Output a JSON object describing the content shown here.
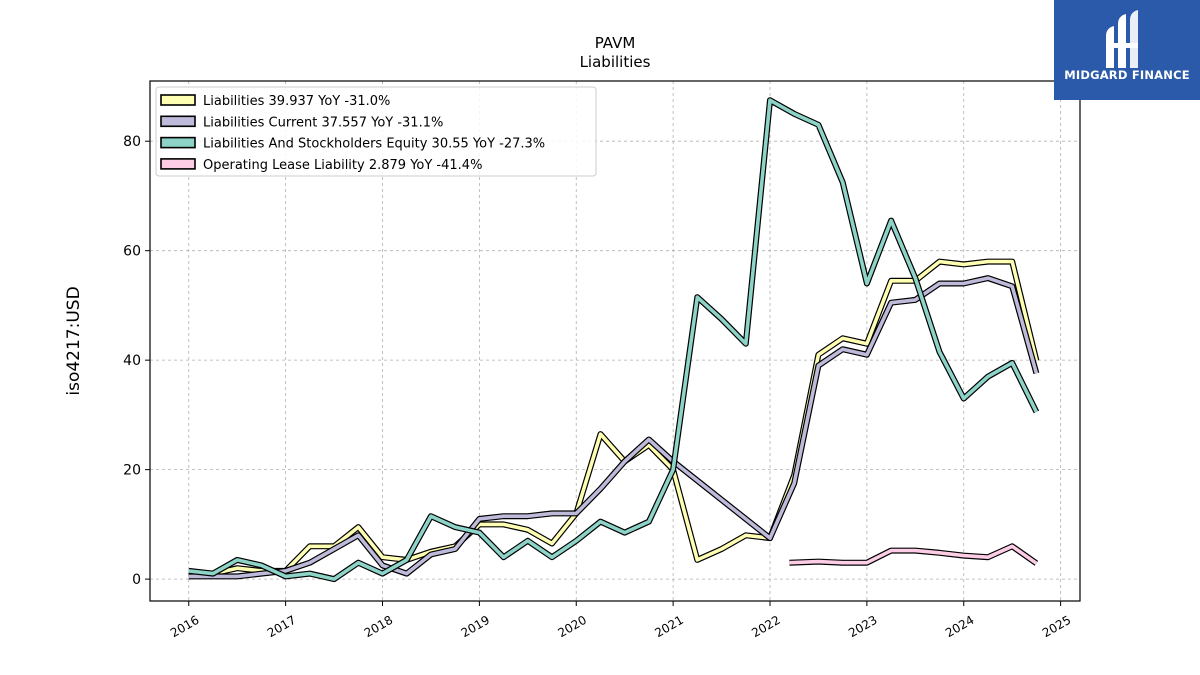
{
  "brand": {
    "name": "MIDGARD FINANCE",
    "logo_color": "#2b5aaa"
  },
  "chart_data": {
    "type": "line",
    "title": "PAVM",
    "subtitle": "Liabilities",
    "ylabel": "iso4217:USD",
    "xlabel": "",
    "xlim": [
      2015.6,
      2025.2
    ],
    "ylim": [
      -4,
      91
    ],
    "x_ticks": [
      2016,
      2017,
      2018,
      2019,
      2020,
      2021,
      2022,
      2023,
      2024,
      2025
    ],
    "y_ticks": [
      0,
      20,
      40,
      60,
      80
    ],
    "grid": true,
    "legend_position": "top-left",
    "series": [
      {
        "name": "Liabilities  39.937 YoY -31.0%",
        "color": "#ffffb3",
        "x": [
          2016.0,
          2016.25,
          2016.5,
          2016.75,
          2017.0,
          2017.25,
          2017.5,
          2017.75,
          2018.0,
          2018.25,
          2018.5,
          2018.75,
          2019.0,
          2019.25,
          2019.5,
          2019.75,
          2020.0,
          2020.25,
          2020.5,
          2020.75,
          2021.0,
          2021.25,
          2021.5,
          2021.75,
          2022.0,
          2022.25,
          2022.5,
          2022.75,
          2023.0,
          2023.25,
          2023.5,
          2023.75,
          2024.0,
          2024.25,
          2024.5,
          2024.75
        ],
        "y": [
          0.5,
          1.0,
          2.0,
          1.5,
          1.5,
          6.0,
          6.0,
          9.5,
          4.0,
          3.5,
          5.0,
          6.0,
          10.0,
          10.0,
          9.0,
          6.5,
          12.0,
          26.5,
          21.5,
          24.5,
          20.0,
          3.5,
          5.5,
          8.0,
          7.5,
          19.0,
          41.0,
          44.0,
          43.0,
          54.5,
          54.5,
          58.0,
          57.5,
          58.0,
          58.0,
          39.9
        ]
      },
      {
        "name": "Liabilities Current  37.557 YoY -31.1%",
        "color": "#bebada",
        "x": [
          2016.0,
          2016.5,
          2017.0,
          2017.25,
          2017.5,
          2017.75,
          2018.0,
          2018.25,
          2018.5,
          2018.75,
          2019.0,
          2019.25,
          2019.5,
          2019.75,
          2020.0,
          2020.25,
          2020.5,
          2020.75,
          2021.0,
          2022.0,
          2022.25,
          2022.5,
          2022.75,
          2023.0,
          2023.25,
          2023.5,
          2023.75,
          2024.0,
          2024.25,
          2024.5,
          2024.75
        ],
        "y": [
          0.5,
          0.5,
          1.5,
          3.0,
          5.5,
          8.0,
          2.5,
          1.0,
          4.5,
          5.5,
          11.0,
          11.5,
          11.5,
          12.0,
          12.0,
          16.5,
          21.5,
          25.5,
          21.5,
          7.5,
          17.5,
          39.0,
          42.0,
          41.0,
          50.5,
          51.0,
          54.0,
          54.0,
          55.0,
          53.5,
          37.6
        ]
      },
      {
        "name": "Liabilities And Stockholders Equity  30.55 YoY -27.3%",
        "color": "#8dd3c7",
        "x": [
          2016.0,
          2016.25,
          2016.5,
          2016.75,
          2017.0,
          2017.25,
          2017.5,
          2017.75,
          2018.0,
          2018.25,
          2018.5,
          2018.75,
          2019.0,
          2019.25,
          2019.5,
          2019.75,
          2020.0,
          2020.25,
          2020.5,
          2020.75,
          2021.0,
          2021.25,
          2021.5,
          2021.75,
          2022.0,
          2022.25,
          2022.5,
          2022.75,
          2023.0,
          2023.25,
          2023.5,
          2023.75,
          2024.0,
          2024.25,
          2024.5,
          2024.75
        ],
        "y": [
          1.5,
          1.0,
          3.5,
          2.5,
          0.5,
          1.0,
          0.0,
          3.0,
          1.0,
          3.5,
          11.5,
          9.5,
          8.5,
          4.0,
          7.0,
          4.0,
          7.0,
          10.5,
          8.5,
          10.5,
          20.0,
          51.5,
          47.5,
          43.0,
          87.5,
          85.0,
          83.0,
          72.5,
          54.0,
          65.5,
          55.0,
          41.5,
          33.0,
          37.0,
          39.5,
          30.55
        ]
      },
      {
        "name": "Operating Lease Liability  2.879 YoY -41.4%",
        "color": "#fccde5",
        "x": [
          2022.2,
          2022.5,
          2022.75,
          2023.0,
          2023.25,
          2023.5,
          2023.75,
          2024.0,
          2024.25,
          2024.5,
          2024.75
        ],
        "y": [
          3.0,
          3.2,
          3.0,
          3.0,
          5.2,
          5.2,
          4.8,
          4.3,
          4.0,
          6.0,
          2.879
        ]
      }
    ]
  }
}
